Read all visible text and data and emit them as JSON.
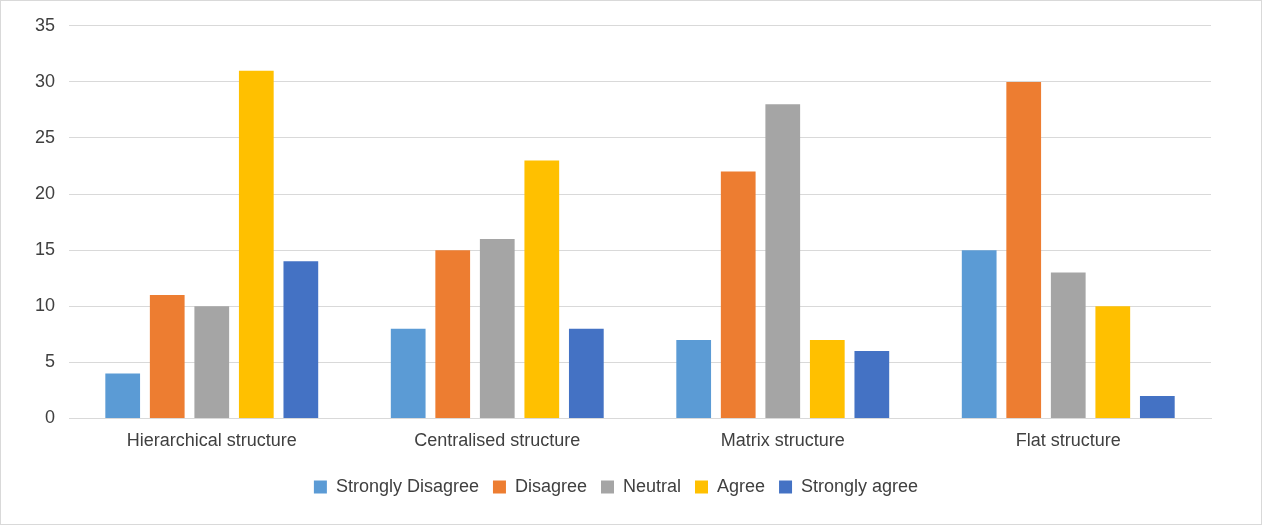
{
  "chart_data": {
    "type": "bar",
    "categories": [
      "Hierarchical structure",
      "Centralised structure",
      "Matrix structure",
      "Flat structure"
    ],
    "series": [
      {
        "name": "Strongly Disagree",
        "color": "#5b9bd5",
        "values": [
          4,
          8,
          7,
          15
        ]
      },
      {
        "name": "Disagree",
        "color": "#ed7d31",
        "values": [
          11,
          15,
          22,
          30
        ]
      },
      {
        "name": "Neutral",
        "color": "#a5a5a5",
        "values": [
          10,
          16,
          28,
          13
        ]
      },
      {
        "name": "Agree",
        "color": "#ffc000",
        "values": [
          31,
          23,
          7,
          10
        ]
      },
      {
        "name": "Strongly agree",
        "color": "#4472c4",
        "values": [
          14,
          8,
          6,
          2
        ]
      }
    ],
    "ylim": [
      0,
      35
    ],
    "yticks": [
      0,
      5,
      10,
      15,
      20,
      25,
      30,
      35
    ],
    "grid": "y",
    "legend": "bottom"
  }
}
